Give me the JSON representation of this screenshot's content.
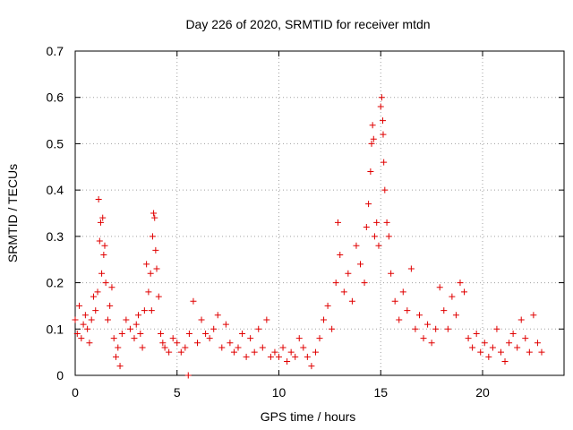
{
  "chart_data": {
    "type": "scatter",
    "title": "Day 226 of 2020, SRMTID for receiver mtdn",
    "xlabel": "GPS time / hours",
    "ylabel": "SRMTID / TECUs",
    "xlim": [
      0,
      24
    ],
    "ylim": [
      0,
      0.7
    ],
    "xticks": [
      0,
      5,
      10,
      15,
      20
    ],
    "xtick_labels": [
      "0",
      "5",
      "10",
      "15",
      "20"
    ],
    "yticks": [
      0,
      0.1,
      0.2,
      0.3,
      0.4,
      0.5,
      0.6,
      0.7
    ],
    "ytick_labels": [
      "0",
      "0.1",
      "0.2",
      "0.3",
      "0.4",
      "0.5",
      "0.6",
      "0.7"
    ],
    "grid": true,
    "marker": "+",
    "color": "#e00000",
    "series": [
      {
        "name": "SRMTID",
        "points": [
          [
            0.0,
            0.12
          ],
          [
            0.1,
            0.09
          ],
          [
            0.2,
            0.15
          ],
          [
            0.3,
            0.08
          ],
          [
            0.4,
            0.11
          ],
          [
            0.5,
            0.13
          ],
          [
            0.6,
            0.1
          ],
          [
            0.7,
            0.07
          ],
          [
            0.8,
            0.12
          ],
          [
            0.9,
            0.17
          ],
          [
            1.0,
            0.14
          ],
          [
            1.1,
            0.18
          ],
          [
            1.15,
            0.38
          ],
          [
            1.2,
            0.29
          ],
          [
            1.25,
            0.33
          ],
          [
            1.3,
            0.22
          ],
          [
            1.35,
            0.34
          ],
          [
            1.4,
            0.26
          ],
          [
            1.45,
            0.28
          ],
          [
            1.5,
            0.2
          ],
          [
            1.6,
            0.12
          ],
          [
            1.7,
            0.15
          ],
          [
            1.8,
            0.19
          ],
          [
            1.9,
            0.08
          ],
          [
            2.0,
            0.04
          ],
          [
            2.1,
            0.06
          ],
          [
            2.2,
            0.02
          ],
          [
            2.3,
            0.09
          ],
          [
            2.5,
            0.12
          ],
          [
            2.7,
            0.1
          ],
          [
            2.9,
            0.08
          ],
          [
            3.0,
            0.11
          ],
          [
            3.1,
            0.13
          ],
          [
            3.2,
            0.09
          ],
          [
            3.3,
            0.06
          ],
          [
            3.4,
            0.14
          ],
          [
            3.5,
            0.24
          ],
          [
            3.6,
            0.18
          ],
          [
            3.7,
            0.22
          ],
          [
            3.75,
            0.14
          ],
          [
            3.8,
            0.3
          ],
          [
            3.85,
            0.35
          ],
          [
            3.9,
            0.34
          ],
          [
            3.95,
            0.27
          ],
          [
            4.0,
            0.23
          ],
          [
            4.1,
            0.17
          ],
          [
            4.2,
            0.09
          ],
          [
            4.3,
            0.07
          ],
          [
            4.4,
            0.06
          ],
          [
            4.6,
            0.05
          ],
          [
            4.8,
            0.08
          ],
          [
            5.0,
            0.07
          ],
          [
            5.2,
            0.05
          ],
          [
            5.4,
            0.06
          ],
          [
            5.55,
            0.0
          ],
          [
            5.6,
            0.09
          ],
          [
            5.8,
            0.16
          ],
          [
            6.0,
            0.07
          ],
          [
            6.2,
            0.12
          ],
          [
            6.4,
            0.09
          ],
          [
            6.6,
            0.08
          ],
          [
            6.8,
            0.1
          ],
          [
            7.0,
            0.13
          ],
          [
            7.2,
            0.06
          ],
          [
            7.4,
            0.11
          ],
          [
            7.6,
            0.07
          ],
          [
            7.8,
            0.05
          ],
          [
            8.0,
            0.06
          ],
          [
            8.2,
            0.09
          ],
          [
            8.4,
            0.04
          ],
          [
            8.6,
            0.08
          ],
          [
            8.8,
            0.05
          ],
          [
            9.0,
            0.1
          ],
          [
            9.2,
            0.06
          ],
          [
            9.4,
            0.12
          ],
          [
            9.6,
            0.04
          ],
          [
            9.8,
            0.05
          ],
          [
            10.0,
            0.04
          ],
          [
            10.2,
            0.06
          ],
          [
            10.4,
            0.03
          ],
          [
            10.6,
            0.05
          ],
          [
            10.8,
            0.04
          ],
          [
            11.0,
            0.08
          ],
          [
            11.2,
            0.06
          ],
          [
            11.4,
            0.04
          ],
          [
            11.6,
            0.02
          ],
          [
            11.8,
            0.05
          ],
          [
            12.0,
            0.08
          ],
          [
            12.2,
            0.12
          ],
          [
            12.4,
            0.15
          ],
          [
            12.6,
            0.1
          ],
          [
            12.8,
            0.2
          ],
          [
            12.9,
            0.33
          ],
          [
            13.0,
            0.26
          ],
          [
            13.2,
            0.18
          ],
          [
            13.4,
            0.22
          ],
          [
            13.6,
            0.16
          ],
          [
            13.8,
            0.28
          ],
          [
            14.0,
            0.24
          ],
          [
            14.2,
            0.2
          ],
          [
            14.3,
            0.32
          ],
          [
            14.4,
            0.37
          ],
          [
            14.5,
            0.44
          ],
          [
            14.55,
            0.5
          ],
          [
            14.6,
            0.54
          ],
          [
            14.65,
            0.51
          ],
          [
            14.7,
            0.3
          ],
          [
            14.8,
            0.33
          ],
          [
            14.9,
            0.28
          ],
          [
            15.0,
            0.58
          ],
          [
            15.05,
            0.6
          ],
          [
            15.1,
            0.55
          ],
          [
            15.12,
            0.52
          ],
          [
            15.15,
            0.46
          ],
          [
            15.2,
            0.4
          ],
          [
            15.3,
            0.33
          ],
          [
            15.4,
            0.3
          ],
          [
            15.5,
            0.22
          ],
          [
            15.7,
            0.16
          ],
          [
            15.9,
            0.12
          ],
          [
            16.1,
            0.18
          ],
          [
            16.3,
            0.14
          ],
          [
            16.5,
            0.23
          ],
          [
            16.7,
            0.1
          ],
          [
            16.9,
            0.13
          ],
          [
            17.1,
            0.08
          ],
          [
            17.3,
            0.11
          ],
          [
            17.5,
            0.07
          ],
          [
            17.7,
            0.1
          ],
          [
            17.9,
            0.19
          ],
          [
            18.1,
            0.14
          ],
          [
            18.3,
            0.1
          ],
          [
            18.5,
            0.17
          ],
          [
            18.7,
            0.13
          ],
          [
            18.9,
            0.2
          ],
          [
            19.1,
            0.18
          ],
          [
            19.3,
            0.08
          ],
          [
            19.5,
            0.06
          ],
          [
            19.7,
            0.09
          ],
          [
            19.9,
            0.05
          ],
          [
            20.1,
            0.07
          ],
          [
            20.3,
            0.04
          ],
          [
            20.5,
            0.06
          ],
          [
            20.7,
            0.1
          ],
          [
            20.9,
            0.05
          ],
          [
            21.1,
            0.03
          ],
          [
            21.3,
            0.07
          ],
          [
            21.5,
            0.09
          ],
          [
            21.7,
            0.06
          ],
          [
            21.9,
            0.12
          ],
          [
            22.1,
            0.08
          ],
          [
            22.3,
            0.05
          ],
          [
            22.5,
            0.13
          ],
          [
            22.7,
            0.07
          ],
          [
            22.9,
            0.05
          ]
        ]
      }
    ]
  }
}
